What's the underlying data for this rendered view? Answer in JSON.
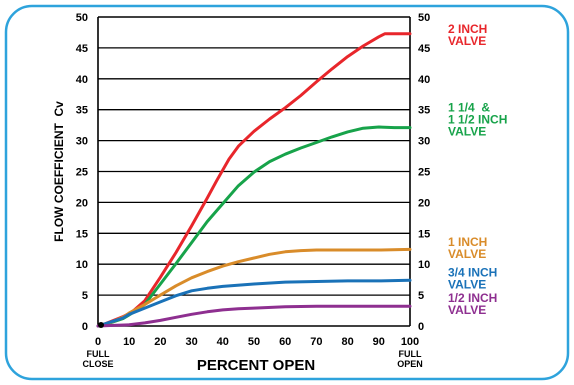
{
  "chart_data": {
    "type": "line",
    "xlabel": "PERCENT OPEN",
    "ylabel": "FLOW COEFFICIENT  Cv",
    "xlim": [
      0,
      100
    ],
    "ylim": [
      0,
      50
    ],
    "x_ticks": [
      0,
      10,
      20,
      30,
      40,
      50,
      60,
      70,
      80,
      90,
      100
    ],
    "y_ticks": [
      0,
      5,
      10,
      15,
      20,
      25,
      30,
      35,
      40,
      45,
      50
    ],
    "y_gridlines": [
      5,
      10,
      15,
      20,
      25,
      30,
      35,
      40,
      45
    ],
    "grid": true,
    "x_end_labels": {
      "left": [
        "FULL",
        "CLOSE"
      ],
      "right": [
        "FULL",
        "OPEN"
      ]
    },
    "series": [
      {
        "name": "2 INCH VALVE",
        "label_lines": [
          "2 INCH",
          "VALVE"
        ],
        "label_at": 47.3,
        "color": "#e8262b",
        "x": [
          0,
          2,
          5,
          8,
          11,
          15,
          20,
          25,
          30,
          35,
          38,
          42,
          45,
          50,
          55,
          60,
          65,
          70,
          75,
          80,
          85,
          90,
          92,
          95,
          100
        ],
        "y": [
          0,
          0.3,
          0.9,
          1.5,
          2.3,
          4.1,
          7.9,
          11.9,
          16.2,
          20.7,
          23.5,
          27.0,
          29.1,
          31.5,
          33.5,
          35.3,
          37.3,
          39.5,
          41.6,
          43.6,
          45.3,
          46.8,
          47.3,
          47.3,
          47.3
        ]
      },
      {
        "name": "1 1/4 & 1 1/2 INCH VALVE",
        "label_lines": [
          "1 1/4  &",
          "1 1/2 INCH",
          "VALVE"
        ],
        "label_at": 32.1,
        "color": "#17a34a",
        "x": [
          0,
          2,
          5,
          8,
          11,
          15,
          20,
          25,
          30,
          35,
          40,
          45,
          50,
          55,
          60,
          65,
          70,
          75,
          80,
          85,
          90,
          95,
          100
        ],
        "y": [
          0,
          0.2,
          0.7,
          1.2,
          2.1,
          3.5,
          6.8,
          10.1,
          13.5,
          16.9,
          19.8,
          22.7,
          24.9,
          26.6,
          27.8,
          28.8,
          29.7,
          30.6,
          31.4,
          32.0,
          32.2,
          32.1,
          32.1
        ]
      },
      {
        "name": "1 INCH VALVE",
        "label_lines": [
          "1 INCH",
          "VALVE"
        ],
        "label_at": 12.3,
        "color": "#d98c2a",
        "x": [
          0,
          3,
          5,
          8,
          10,
          15,
          20,
          25,
          30,
          35,
          40,
          45,
          50,
          55,
          60,
          65,
          70,
          80,
          90,
          100
        ],
        "y": [
          0,
          0.4,
          0.8,
          1.4,
          2.1,
          3.5,
          5.0,
          6.5,
          7.8,
          8.8,
          9.7,
          10.4,
          11.0,
          11.6,
          12.0,
          12.2,
          12.3,
          12.3,
          12.3,
          12.4
        ]
      },
      {
        "name": "3/4 INCH VALVE",
        "label_lines": [
          "3/4 INCH",
          "VALVE"
        ],
        "label_at": 7.4,
        "color": "#1a72b8",
        "x": [
          0,
          5,
          8,
          10,
          15,
          20,
          25,
          30,
          35,
          40,
          50,
          60,
          70,
          80,
          90,
          100
        ],
        "y": [
          0,
          0.8,
          1.3,
          1.9,
          2.9,
          3.9,
          4.9,
          5.7,
          6.1,
          6.4,
          6.8,
          7.1,
          7.2,
          7.3,
          7.3,
          7.4
        ]
      },
      {
        "name": "1/2 INCH VALVE",
        "label_lines": [
          "1/2 INCH",
          "VALVE"
        ],
        "label_at": 3.2,
        "color": "#8e2f90",
        "x": [
          0,
          5,
          10,
          15,
          20,
          25,
          30,
          35,
          40,
          45,
          50,
          60,
          70,
          80,
          90,
          100
        ],
        "y": [
          0,
          0.1,
          0.2,
          0.5,
          0.9,
          1.4,
          1.9,
          2.3,
          2.6,
          2.8,
          2.9,
          3.1,
          3.2,
          3.2,
          3.2,
          3.2
        ]
      }
    ]
  }
}
